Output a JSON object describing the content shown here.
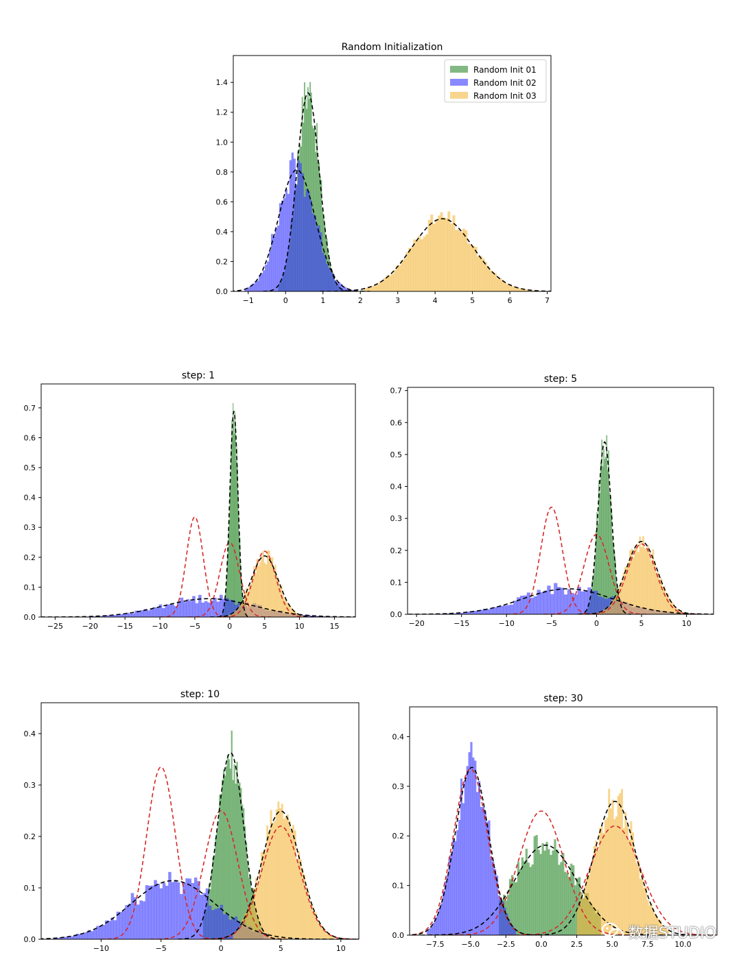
{
  "chart_data": [
    {
      "id": "init",
      "type": "histogram",
      "title": "Random Initialization",
      "xlim": [
        -1.4,
        7.1
      ],
      "ylim": [
        0,
        1.58
      ],
      "xticks": [
        -1,
        0,
        1,
        2,
        3,
        4,
        5,
        6,
        7
      ],
      "xtick_labels": [
        "−1",
        "0",
        "1",
        "2",
        "3",
        "4",
        "5",
        "6",
        "7"
      ],
      "yticks": [
        0.0,
        0.2,
        0.4,
        0.6,
        0.8,
        1.0,
        1.2,
        1.4
      ],
      "ytick_labels": [
        "0.0",
        "0.2",
        "0.4",
        "0.6",
        "0.8",
        "1.0",
        "1.2",
        "1.4"
      ],
      "legend": {
        "position": "top-right",
        "entries": [
          "Random Init 01",
          "Random Init 02",
          "Random Init 03"
        ]
      },
      "series": [
        {
          "name": "Random Init 01",
          "color": "#2e8b2e",
          "mean": 0.6,
          "std": 0.3,
          "range": [
            -0.2,
            1.6
          ],
          "bins": 60,
          "jitter": 0.14,
          "gauss": {
            "mean": 0.6,
            "std": 0.3,
            "style": "black"
          }
        },
        {
          "name": "Random Init 02",
          "color": "#3b3bff",
          "mean": 0.3,
          "std": 0.49,
          "range": [
            -1.1,
            1.9
          ],
          "bins": 55,
          "jitter": 0.18,
          "gauss": {
            "mean": 0.3,
            "std": 0.49,
            "style": "black"
          }
        },
        {
          "name": "Random Init 03",
          "color": "#f4b942",
          "mean": 4.2,
          "std": 0.82,
          "range": [
            2.1,
            6.7
          ],
          "bins": 70,
          "jitter": 0.12,
          "gauss": {
            "mean": 4.2,
            "std": 0.82,
            "style": "black"
          }
        }
      ]
    },
    {
      "id": "step1",
      "type": "histogram",
      "title": "step: 1",
      "xlim": [
        -27,
        18
      ],
      "ylim": [
        0,
        0.78
      ],
      "xticks": [
        -25,
        -20,
        -15,
        -10,
        -5,
        0,
        5,
        10,
        15
      ],
      "xtick_labels": [
        "−25",
        "−20",
        "−15",
        "−10",
        "−5",
        "0",
        "5",
        "10",
        "15"
      ],
      "yticks": [
        0.0,
        0.1,
        0.2,
        0.3,
        0.4,
        0.5,
        0.6,
        0.7
      ],
      "ytick_labels": [
        "0.0",
        "0.1",
        "0.2",
        "0.3",
        "0.4",
        "0.5",
        "0.6",
        "0.7"
      ],
      "series": [
        {
          "name": "Random Init 01",
          "color": "#2e8b2e",
          "mean": 0.6,
          "std": 0.58,
          "range": [
            -1.2,
            2.4
          ],
          "bins": 40,
          "jitter": 0.14,
          "gauss": {
            "mean": 0.6,
            "std": 0.58,
            "style": "black"
          }
        },
        {
          "name": "Random Init 02",
          "color": "#3b3bff",
          "mean": -3.0,
          "std": 6.5,
          "range": [
            -24,
            15
          ],
          "bins": 90,
          "jitter": 0.25,
          "gauss": {
            "mean": -3.0,
            "std": 6.5,
            "style": "black"
          }
        },
        {
          "name": "Random Init 03",
          "color": "#f4b942",
          "mean": 5.0,
          "std": 1.95,
          "range": [
            -1,
            11
          ],
          "bins": 55,
          "jitter": 0.15,
          "gauss": {
            "mean": 5.0,
            "std": 1.95,
            "style": "black"
          }
        }
      ],
      "red_curves": [
        {
          "mean": -5,
          "std": 1.2,
          "peak": 0.335
        },
        {
          "mean": 0,
          "std": 1.4,
          "peak": 0.25
        },
        {
          "mean": 5,
          "std": 1.6,
          "peak": 0.22
        }
      ]
    },
    {
      "id": "step5",
      "type": "histogram",
      "title": "step: 5",
      "xlim": [
        -21,
        13
      ],
      "ylim": [
        0,
        0.71
      ],
      "xticks": [
        -20,
        -15,
        -10,
        -5,
        0,
        5,
        10
      ],
      "xtick_labels": [
        "−20",
        "−15",
        "−10",
        "−5",
        "0",
        "5",
        "10"
      ],
      "yticks": [
        0.0,
        0.1,
        0.2,
        0.3,
        0.4,
        0.5,
        0.6,
        0.7
      ],
      "ytick_labels": [
        "0.0",
        "0.1",
        "0.2",
        "0.3",
        "0.4",
        "0.5",
        "0.6",
        "0.7"
      ],
      "series": [
        {
          "name": "Random Init 01",
          "color": "#2e8b2e",
          "mean": 0.9,
          "std": 0.74,
          "range": [
            -1.3,
            3.0
          ],
          "bins": 40,
          "jitter": 0.15,
          "gauss": {
            "mean": 0.9,
            "std": 0.74,
            "style": "black"
          }
        },
        {
          "name": "Random Init 02",
          "color": "#3b3bff",
          "mean": -3.2,
          "std": 5.0,
          "range": [
            -19,
            11
          ],
          "bins": 80,
          "jitter": 0.25,
          "gauss": {
            "mean": -3.2,
            "std": 5.0,
            "style": "black"
          }
        },
        {
          "name": "Random Init 03",
          "color": "#f4b942",
          "mean": 5.0,
          "std": 1.75,
          "range": [
            0,
            10
          ],
          "bins": 55,
          "jitter": 0.15,
          "gauss": {
            "mean": 5.0,
            "std": 1.75,
            "style": "black"
          }
        }
      ],
      "red_curves": [
        {
          "mean": -5,
          "std": 1.2,
          "peak": 0.335
        },
        {
          "mean": 0,
          "std": 1.4,
          "peak": 0.25
        },
        {
          "mean": 5,
          "std": 1.6,
          "peak": 0.22
        }
      ]
    },
    {
      "id": "step10",
      "type": "histogram",
      "title": "step: 10",
      "xlim": [
        -15,
        11.5
      ],
      "ylim": [
        0,
        0.46
      ],
      "xticks": [
        -10,
        -5,
        0,
        5,
        10
      ],
      "xtick_labels": [
        "−10",
        "−5",
        "0",
        "5",
        "10"
      ],
      "yticks": [
        0.0,
        0.1,
        0.2,
        0.3,
        0.4
      ],
      "ytick_labels": [
        "0.0",
        "0.1",
        "0.2",
        "0.3",
        "0.4"
      ],
      "series": [
        {
          "name": "Random Init 01",
          "color": "#2e8b2e",
          "mean": 0.8,
          "std": 1.1,
          "range": [
            -1.5,
            3.5
          ],
          "bins": 45,
          "jitter": 0.15,
          "gauss": {
            "mean": 0.8,
            "std": 1.1,
            "style": "black"
          }
        },
        {
          "name": "Random Init 02",
          "color": "#3b3bff",
          "mean": -4.0,
          "std": 3.5,
          "range": [
            -14,
            4
          ],
          "bins": 75,
          "jitter": 0.25,
          "gauss": {
            "mean": -4.0,
            "std": 3.5,
            "style": "black"
          }
        },
        {
          "name": "Random Init 03",
          "color": "#f4b942",
          "mean": 5.0,
          "std": 1.6,
          "range": [
            1.0,
            9.5
          ],
          "bins": 55,
          "jitter": 0.15,
          "gauss": {
            "mean": 5.0,
            "std": 1.6,
            "style": "black"
          }
        }
      ],
      "red_curves": [
        {
          "mean": -5,
          "std": 1.2,
          "peak": 0.335
        },
        {
          "mean": 0,
          "std": 1.4,
          "peak": 0.25
        },
        {
          "mean": 5,
          "std": 1.6,
          "peak": 0.22
        }
      ]
    },
    {
      "id": "step30",
      "type": "histogram",
      "title": "step: 30",
      "xlim": [
        -9.3,
        12.4
      ],
      "ylim": [
        0,
        0.46
      ],
      "xticks": [
        -7.5,
        -5.0,
        -2.5,
        0.0,
        2.5,
        5.0,
        7.5,
        10.0
      ],
      "xtick_labels": [
        "−7.5",
        "−5.0",
        "−2.5",
        "0.0",
        "2.5",
        "5.0",
        "7.5",
        "10.0"
      ],
      "yticks": [
        0.0,
        0.1,
        0.2,
        0.3,
        0.4
      ],
      "ytick_labels": [
        "0.0",
        "0.1",
        "0.2",
        "0.3",
        "0.4"
      ],
      "series": [
        {
          "name": "Random Init 01",
          "color": "#2e8b2e",
          "mean": 0.3,
          "std": 2.2,
          "range": [
            -3.0,
            4.2
          ],
          "bins": 50,
          "jitter": 0.18,
          "gauss": {
            "mean": 0.3,
            "std": 2.2,
            "style": "black"
          }
        },
        {
          "name": "Random Init 02",
          "color": "#3b3bff",
          "mean": -4.9,
          "std": 1.18,
          "range": [
            -8.1,
            -1.8
          ],
          "bins": 45,
          "jitter": 0.15,
          "gauss": {
            "mean": -4.9,
            "std": 1.18,
            "style": "black"
          }
        },
        {
          "name": "Random Init 03",
          "color": "#f4b942",
          "mean": 5.2,
          "std": 1.48,
          "range": [
            2.5,
            9.0
          ],
          "bins": 50,
          "jitter": 0.15,
          "gauss": {
            "mean": 5.2,
            "std": 1.48,
            "style": "black"
          }
        }
      ],
      "red_curves": [
        {
          "mean": -5,
          "std": 1.2,
          "peak": 0.335
        },
        {
          "mean": 0,
          "std": 1.6,
          "peak": 0.25
        },
        {
          "mean": 5.2,
          "std": 1.8,
          "peak": 0.22
        }
      ]
    }
  ],
  "watermark": {
    "label": "数据STUDIO"
  }
}
